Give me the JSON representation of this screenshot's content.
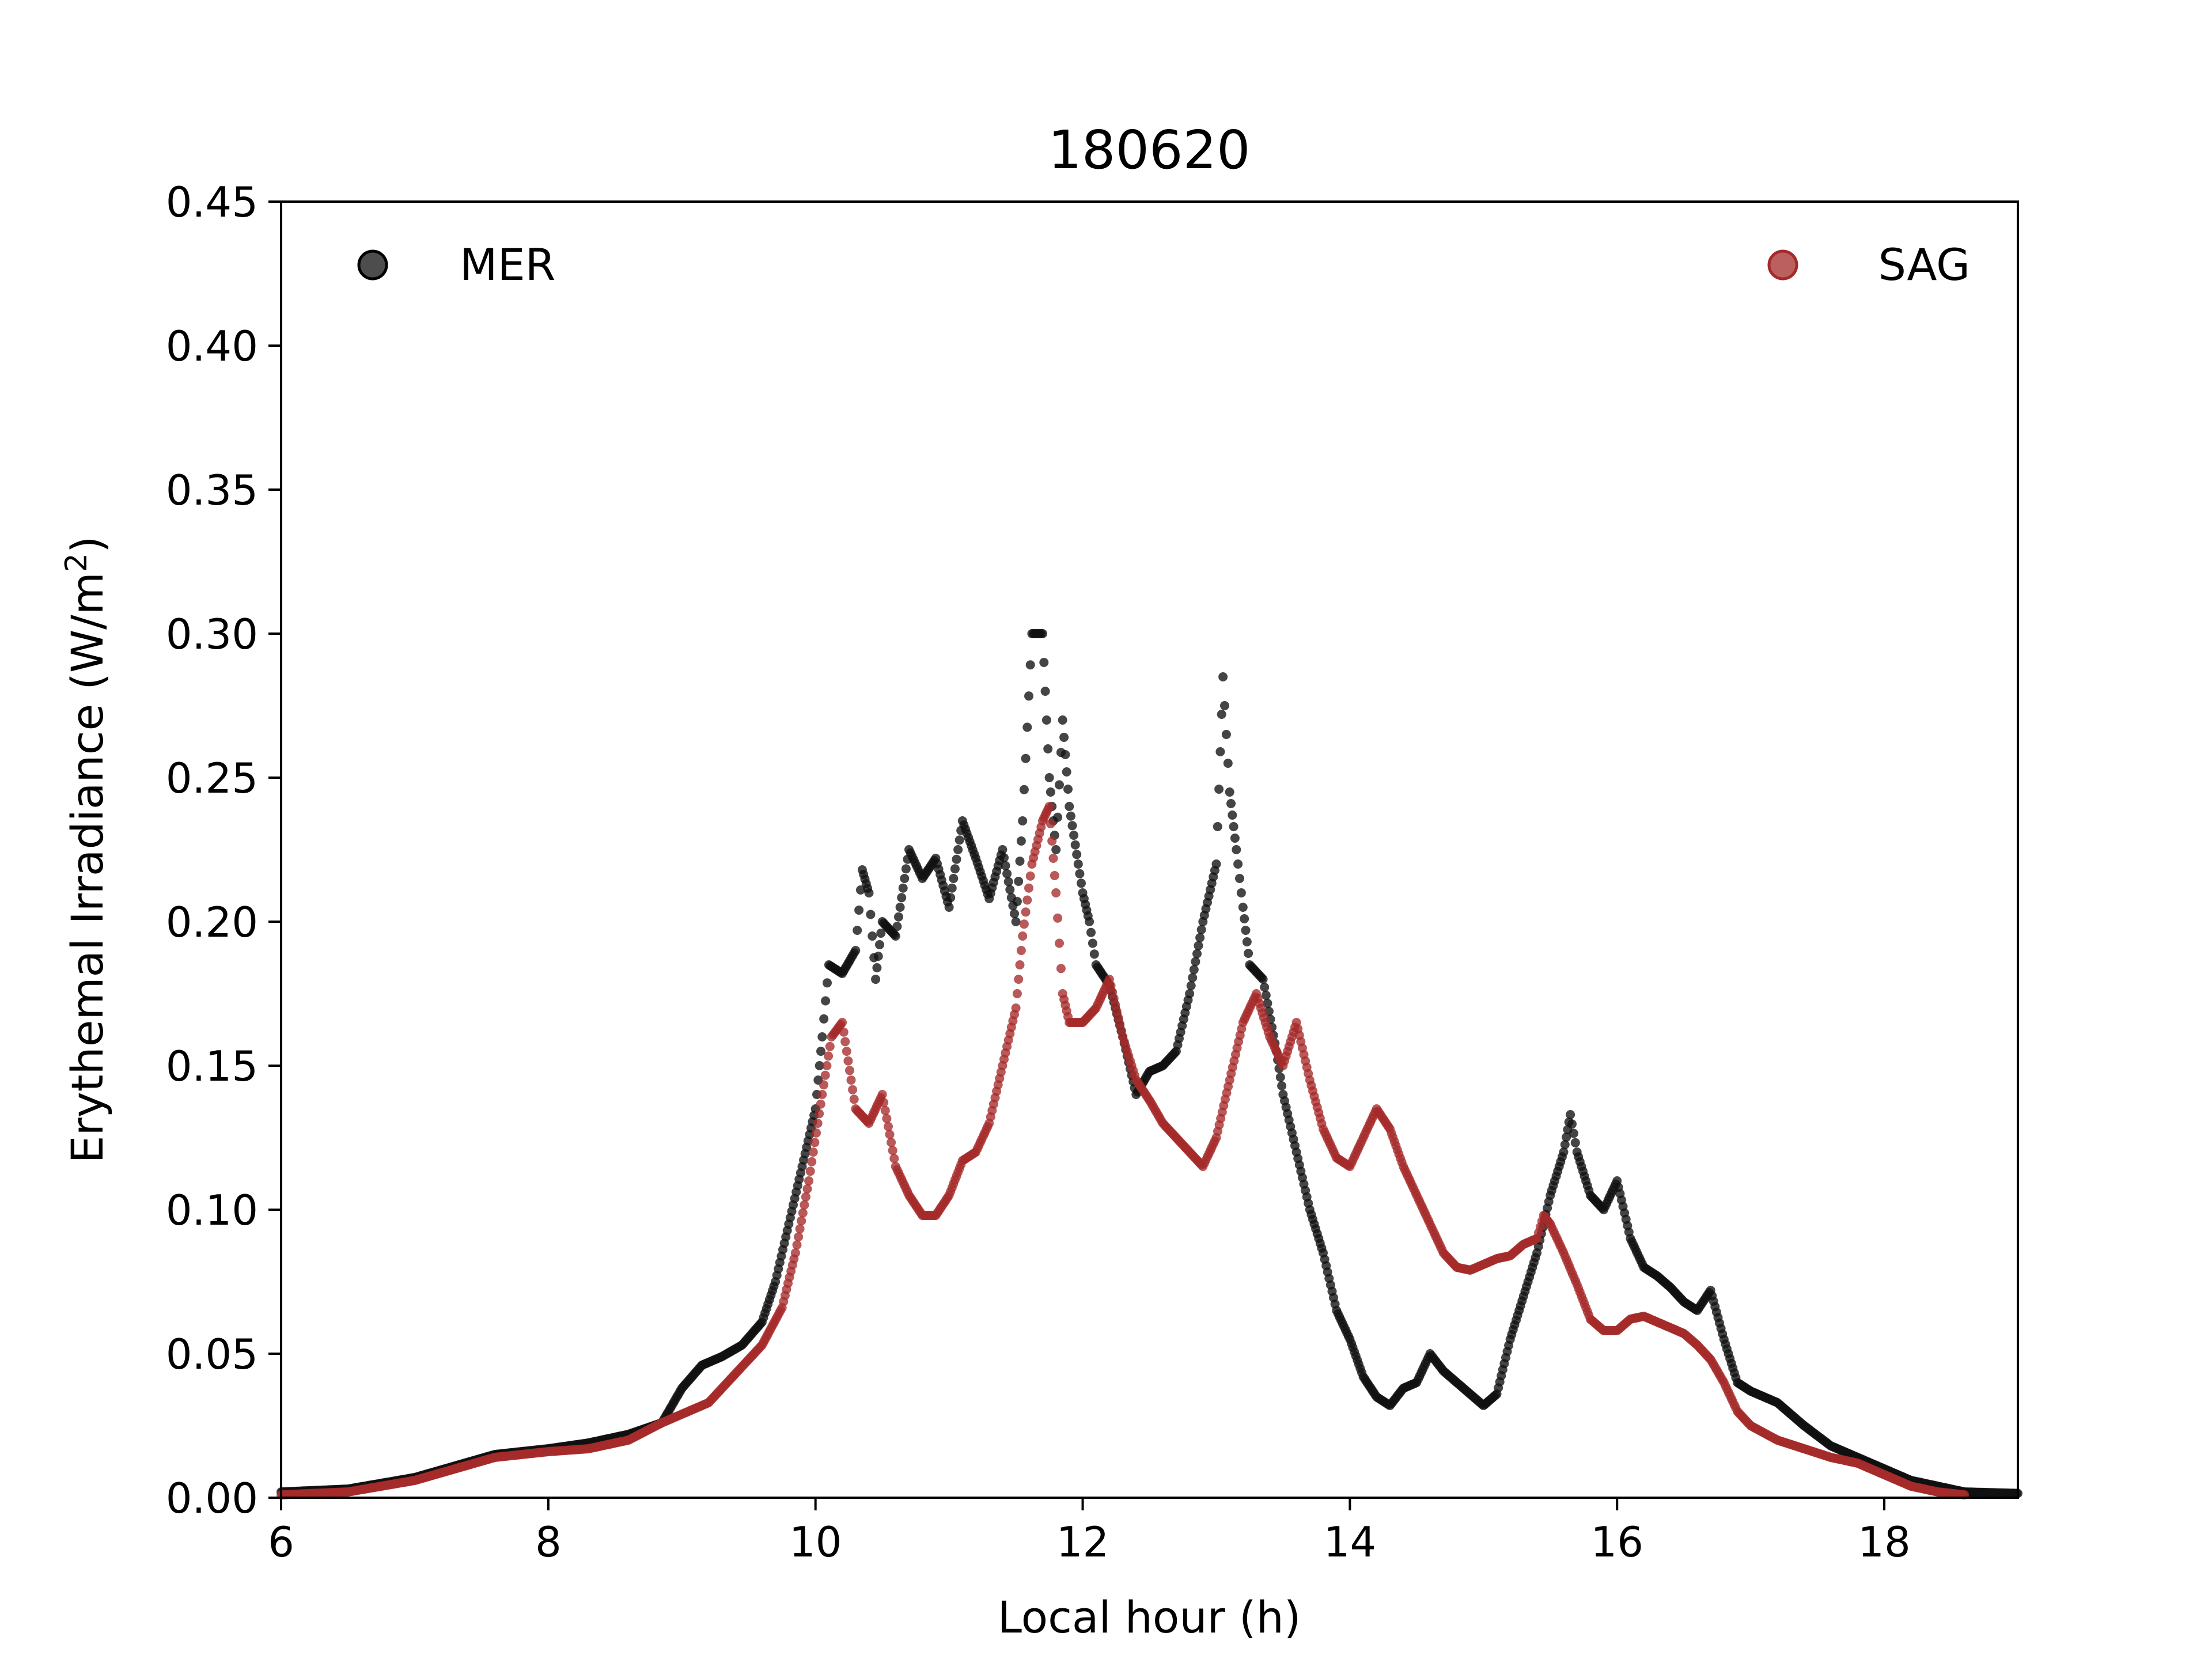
{
  "chart_data": {
    "type": "scatter",
    "title": "180620",
    "xlabel": "Local hour (h)",
    "ylabel_main": "Erythemal Irradiance (W/m",
    "ylabel_sup": "2",
    "ylabel_close": ")",
    "xlim": [
      6,
      19
    ],
    "ylim": [
      0,
      0.45
    ],
    "xticks": [
      6,
      8,
      10,
      12,
      14,
      16,
      18
    ],
    "xtick_labels": [
      "6",
      "8",
      "10",
      "12",
      "14",
      "16",
      "18"
    ],
    "yticks": [
      0.0,
      0.05,
      0.1,
      0.15,
      0.2,
      0.25,
      0.3,
      0.35,
      0.4,
      0.45
    ],
    "ytick_labels": [
      "0.00",
      "0.05",
      "0.10",
      "0.15",
      "0.20",
      "0.25",
      "0.30",
      "0.35",
      "0.40",
      "0.45"
    ],
    "grid": false,
    "legend": [
      {
        "name": "MER",
        "placement": "top-left"
      },
      {
        "name": "SAG",
        "placement": "top-right"
      }
    ],
    "series": [
      {
        "name": "MER",
        "color": "#111111",
        "points": [
          [
            6.0,
            0.002
          ],
          [
            6.5,
            0.003
          ],
          [
            7.0,
            0.007
          ],
          [
            7.3,
            0.011
          ],
          [
            7.6,
            0.015
          ],
          [
            8.0,
            0.017
          ],
          [
            8.3,
            0.019
          ],
          [
            8.6,
            0.022
          ],
          [
            8.85,
            0.026
          ],
          [
            9.0,
            0.038
          ],
          [
            9.15,
            0.046
          ],
          [
            9.3,
            0.049
          ],
          [
            9.45,
            0.053
          ],
          [
            9.6,
            0.061
          ],
          [
            9.7,
            0.075
          ],
          [
            9.8,
            0.095
          ],
          [
            9.9,
            0.115
          ],
          [
            10.0,
            0.135
          ],
          [
            10.05,
            0.16
          ],
          [
            10.1,
            0.185
          ],
          [
            10.2,
            0.182
          ],
          [
            10.3,
            0.19
          ],
          [
            10.35,
            0.218
          ],
          [
            10.4,
            0.21
          ],
          [
            10.45,
            0.18
          ],
          [
            10.5,
            0.2
          ],
          [
            10.6,
            0.195
          ],
          [
            10.7,
            0.225
          ],
          [
            10.8,
            0.215
          ],
          [
            10.9,
            0.222
          ],
          [
            11.0,
            0.205
          ],
          [
            11.1,
            0.235
          ],
          [
            11.2,
            0.222
          ],
          [
            11.3,
            0.208
          ],
          [
            11.4,
            0.225
          ],
          [
            11.5,
            0.2
          ],
          [
            11.55,
            0.235
          ],
          [
            11.62,
            0.3
          ],
          [
            11.7,
            0.3
          ],
          [
            11.75,
            0.25
          ],
          [
            11.8,
            0.225
          ],
          [
            11.85,
            0.27
          ],
          [
            11.9,
            0.24
          ],
          [
            12.0,
            0.21
          ],
          [
            12.05,
            0.2
          ],
          [
            12.1,
            0.185
          ],
          [
            12.2,
            0.178
          ],
          [
            12.3,
            0.16
          ],
          [
            12.4,
            0.14
          ],
          [
            12.5,
            0.148
          ],
          [
            12.6,
            0.15
          ],
          [
            12.7,
            0.155
          ],
          [
            12.8,
            0.175
          ],
          [
            12.9,
            0.2
          ],
          [
            13.0,
            0.22
          ],
          [
            13.05,
            0.285
          ],
          [
            13.1,
            0.245
          ],
          [
            13.15,
            0.225
          ],
          [
            13.2,
            0.205
          ],
          [
            13.25,
            0.185
          ],
          [
            13.35,
            0.18
          ],
          [
            13.45,
            0.155
          ],
          [
            13.5,
            0.14
          ],
          [
            13.6,
            0.12
          ],
          [
            13.7,
            0.1
          ],
          [
            13.8,
            0.085
          ],
          [
            13.9,
            0.065
          ],
          [
            14.0,
            0.055
          ],
          [
            14.1,
            0.042
          ],
          [
            14.2,
            0.035
          ],
          [
            14.3,
            0.032
          ],
          [
            14.4,
            0.038
          ],
          [
            14.5,
            0.04
          ],
          [
            14.6,
            0.05
          ],
          [
            14.7,
            0.044
          ],
          [
            14.8,
            0.04
          ],
          [
            14.9,
            0.036
          ],
          [
            15.0,
            0.032
          ],
          [
            15.1,
            0.036
          ],
          [
            15.2,
            0.055
          ],
          [
            15.3,
            0.07
          ],
          [
            15.4,
            0.085
          ],
          [
            15.5,
            0.105
          ],
          [
            15.6,
            0.12
          ],
          [
            15.65,
            0.133
          ],
          [
            15.7,
            0.12
          ],
          [
            15.8,
            0.105
          ],
          [
            15.9,
            0.1
          ],
          [
            16.0,
            0.11
          ],
          [
            16.1,
            0.09
          ],
          [
            16.2,
            0.08
          ],
          [
            16.3,
            0.077
          ],
          [
            16.4,
            0.073
          ],
          [
            16.5,
            0.068
          ],
          [
            16.6,
            0.065
          ],
          [
            16.7,
            0.072
          ],
          [
            16.8,
            0.055
          ],
          [
            16.9,
            0.04
          ],
          [
            17.0,
            0.037
          ],
          [
            17.2,
            0.033
          ],
          [
            17.4,
            0.025
          ],
          [
            17.6,
            0.018
          ],
          [
            17.8,
            0.014
          ],
          [
            18.0,
            0.01
          ],
          [
            18.2,
            0.006
          ],
          [
            18.4,
            0.004
          ],
          [
            18.6,
            0.002
          ],
          [
            19.0,
            0.0015
          ]
        ]
      },
      {
        "name": "SAG",
        "color": "#a52a2a",
        "points": [
          [
            6.0,
            0.001
          ],
          [
            6.5,
            0.002
          ],
          [
            7.0,
            0.006
          ],
          [
            7.3,
            0.01
          ],
          [
            7.6,
            0.014
          ],
          [
            8.0,
            0.016
          ],
          [
            8.3,
            0.017
          ],
          [
            8.6,
            0.02
          ],
          [
            8.85,
            0.026
          ],
          [
            9.0,
            0.029
          ],
          [
            9.2,
            0.033
          ],
          [
            9.4,
            0.043
          ],
          [
            9.6,
            0.053
          ],
          [
            9.75,
            0.066
          ],
          [
            9.85,
            0.085
          ],
          [
            9.95,
            0.11
          ],
          [
            10.05,
            0.14
          ],
          [
            10.12,
            0.16
          ],
          [
            10.2,
            0.165
          ],
          [
            10.3,
            0.135
          ],
          [
            10.4,
            0.13
          ],
          [
            10.5,
            0.14
          ],
          [
            10.6,
            0.115
          ],
          [
            10.7,
            0.105
          ],
          [
            10.8,
            0.098
          ],
          [
            10.9,
            0.098
          ],
          [
            11.0,
            0.105
          ],
          [
            11.1,
            0.117
          ],
          [
            11.2,
            0.12
          ],
          [
            11.3,
            0.13
          ],
          [
            11.4,
            0.15
          ],
          [
            11.5,
            0.17
          ],
          [
            11.55,
            0.195
          ],
          [
            11.62,
            0.22
          ],
          [
            11.7,
            0.235
          ],
          [
            11.75,
            0.24
          ],
          [
            11.8,
            0.21
          ],
          [
            11.85,
            0.175
          ],
          [
            11.9,
            0.165
          ],
          [
            12.0,
            0.165
          ],
          [
            12.1,
            0.17
          ],
          [
            12.2,
            0.18
          ],
          [
            12.3,
            0.16
          ],
          [
            12.4,
            0.145
          ],
          [
            12.5,
            0.138
          ],
          [
            12.6,
            0.13
          ],
          [
            12.7,
            0.125
          ],
          [
            12.8,
            0.12
          ],
          [
            12.9,
            0.115
          ],
          [
            13.0,
            0.125
          ],
          [
            13.1,
            0.145
          ],
          [
            13.2,
            0.165
          ],
          [
            13.3,
            0.175
          ],
          [
            13.4,
            0.16
          ],
          [
            13.5,
            0.15
          ],
          [
            13.6,
            0.165
          ],
          [
            13.7,
            0.145
          ],
          [
            13.8,
            0.128
          ],
          [
            13.9,
            0.118
          ],
          [
            14.0,
            0.115
          ],
          [
            14.1,
            0.125
          ],
          [
            14.2,
            0.135
          ],
          [
            14.3,
            0.128
          ],
          [
            14.4,
            0.115
          ],
          [
            14.5,
            0.105
          ],
          [
            14.6,
            0.095
          ],
          [
            14.7,
            0.085
          ],
          [
            14.8,
            0.08
          ],
          [
            14.9,
            0.079
          ],
          [
            15.0,
            0.081
          ],
          [
            15.1,
            0.083
          ],
          [
            15.2,
            0.084
          ],
          [
            15.3,
            0.088
          ],
          [
            15.4,
            0.09
          ],
          [
            15.45,
            0.098
          ],
          [
            15.5,
            0.095
          ],
          [
            15.6,
            0.085
          ],
          [
            15.7,
            0.074
          ],
          [
            15.8,
            0.062
          ],
          [
            15.9,
            0.058
          ],
          [
            16.0,
            0.058
          ],
          [
            16.1,
            0.062
          ],
          [
            16.2,
            0.063
          ],
          [
            16.3,
            0.061
          ],
          [
            16.4,
            0.059
          ],
          [
            16.5,
            0.057
          ],
          [
            16.6,
            0.053
          ],
          [
            16.7,
            0.048
          ],
          [
            16.8,
            0.04
          ],
          [
            16.9,
            0.03
          ],
          [
            17.0,
            0.025
          ],
          [
            17.2,
            0.02
          ],
          [
            17.4,
            0.017
          ],
          [
            17.6,
            0.014
          ],
          [
            17.8,
            0.012
          ],
          [
            18.0,
            0.008
          ],
          [
            18.2,
            0.004
          ],
          [
            18.4,
            0.002
          ],
          [
            18.6,
            0.001
          ]
        ]
      }
    ]
  }
}
